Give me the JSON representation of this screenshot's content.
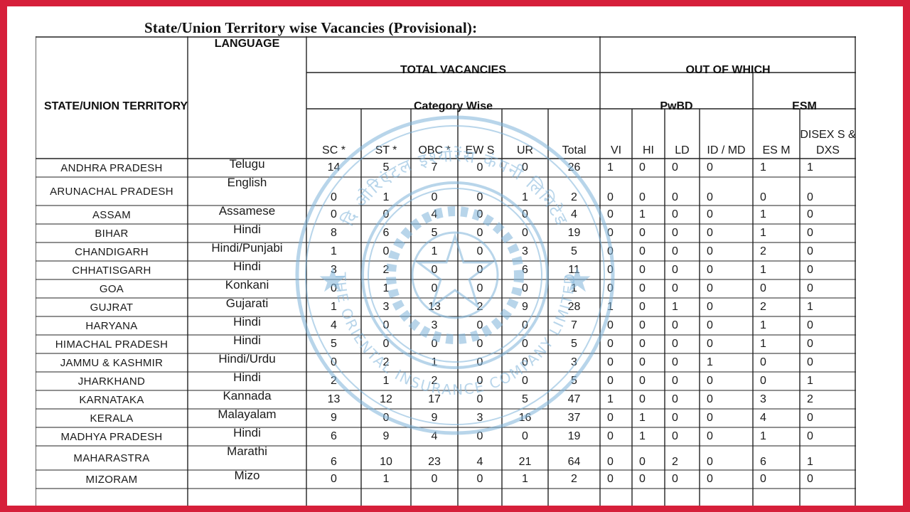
{
  "title": "State/Union Territory wise Vacancies (Provisional):",
  "headers": {
    "state": "STATE/UNION TERRITORY",
    "language": "LANGUAGE",
    "total_vacancies": "TOTAL VACANCIES",
    "out_of_which": "OUT OF WHICH",
    "category_wise": "Category Wise",
    "pwbd": "PwBD",
    "esm": "ESM",
    "columns": [
      "SC *",
      "ST *",
      "OBC *",
      "EW S",
      "UR",
      "Total",
      "VI",
      "HI",
      "LD",
      "ID / MD",
      "ES M",
      "DISEX S & DXS"
    ]
  },
  "rows": [
    {
      "state": "ANDHRA PRADESH",
      "language": "Telugu",
      "values": [
        "14",
        "5",
        "7",
        "0",
        "0",
        "26",
        "1",
        "0",
        "0",
        "0",
        "1",
        "1"
      ]
    },
    {
      "state": "ARUNACHAL PRADESH",
      "language": "English",
      "values": [
        "0",
        "1",
        "0",
        "0",
        "1",
        "2",
        "0",
        "0",
        "0",
        "0",
        "0",
        "0"
      ]
    },
    {
      "state": "ASSAM",
      "language": "Assamese",
      "values": [
        "0",
        "0",
        "4",
        "0",
        "0",
        "4",
        "0",
        "1",
        "0",
        "0",
        "1",
        "0"
      ]
    },
    {
      "state": "BIHAR",
      "language": "Hindi",
      "values": [
        "8",
        "6",
        "5",
        "0",
        "0",
        "19",
        "0",
        "0",
        "0",
        "0",
        "1",
        "0"
      ]
    },
    {
      "state": "CHANDIGARH",
      "language": "Hindi/Punjabi",
      "values": [
        "1",
        "0",
        "1",
        "0",
        "3",
        "5",
        "0",
        "0",
        "0",
        "0",
        "2",
        "0"
      ]
    },
    {
      "state": "CHHATISGARH",
      "language": "Hindi",
      "values": [
        "3",
        "2",
        "0",
        "0",
        "6",
        "11",
        "0",
        "0",
        "0",
        "0",
        "1",
        "0"
      ]
    },
    {
      "state": "GOA",
      "language": "Konkani",
      "values": [
        "0",
        "1",
        "0",
        "0",
        "0",
        "1",
        "0",
        "0",
        "0",
        "0",
        "0",
        "0"
      ]
    },
    {
      "state": "GUJRAT",
      "language": "Gujarati",
      "values": [
        "1",
        "3",
        "13",
        "2",
        "9",
        "28",
        "1",
        "0",
        "1",
        "0",
        "2",
        "1"
      ]
    },
    {
      "state": "HARYANA",
      "language": "Hindi",
      "values": [
        "4",
        "0",
        "3",
        "0",
        "0",
        "7",
        "0",
        "0",
        "0",
        "0",
        "1",
        "0"
      ]
    },
    {
      "state": "HIMACHAL PRADESH",
      "language": "Hindi",
      "values": [
        "5",
        "0",
        "0",
        "0",
        "0",
        "5",
        "0",
        "0",
        "0",
        "0",
        "1",
        "0"
      ]
    },
    {
      "state": "JAMMU & KASHMIR",
      "language": "Hindi/Urdu",
      "values": [
        "0",
        "2",
        "1",
        "0",
        "0",
        "3",
        "0",
        "0",
        "0",
        "1",
        "0",
        "0"
      ]
    },
    {
      "state": "JHARKHAND",
      "language": "Hindi",
      "values": [
        "2",
        "1",
        "2",
        "0",
        "0",
        "5",
        "0",
        "0",
        "0",
        "0",
        "0",
        "1"
      ]
    },
    {
      "state": "KARNATAKA",
      "language": "Kannada",
      "values": [
        "13",
        "12",
        "17",
        "0",
        "5",
        "47",
        "1",
        "0",
        "0",
        "0",
        "3",
        "2"
      ]
    },
    {
      "state": "KERALA",
      "language": "Malayalam",
      "values": [
        "9",
        "0",
        "9",
        "3",
        "16",
        "37",
        "0",
        "1",
        "0",
        "0",
        "4",
        "0"
      ]
    },
    {
      "state": "MADHYA PRADESH",
      "language": "Hindi",
      "values": [
        "6",
        "9",
        "4",
        "0",
        "0",
        "19",
        "0",
        "1",
        "0",
        "0",
        "1",
        "0"
      ]
    },
    {
      "state": "MAHARASTRA",
      "language": "Marathi",
      "values": [
        "6",
        "10",
        "23",
        "4",
        "21",
        "64",
        "0",
        "0",
        "2",
        "0",
        "6",
        "1"
      ]
    },
    {
      "state": "MIZORAM",
      "language": "Mizo",
      "values": [
        "0",
        "1",
        "0",
        "0",
        "1",
        "2",
        "0",
        "0",
        "0",
        "0",
        "0",
        "0"
      ]
    }
  ],
  "watermark": {
    "text_top": "दि ओरिएंटल इंश्योरेंस कंपनी लिमिटेड",
    "text_bottom": "THE ORIENTAL INSURANCE COMPANY LIMITED",
    "color": "#7fb4da"
  },
  "colors": {
    "border": "#d61f3a",
    "grid": "#222222"
  }
}
